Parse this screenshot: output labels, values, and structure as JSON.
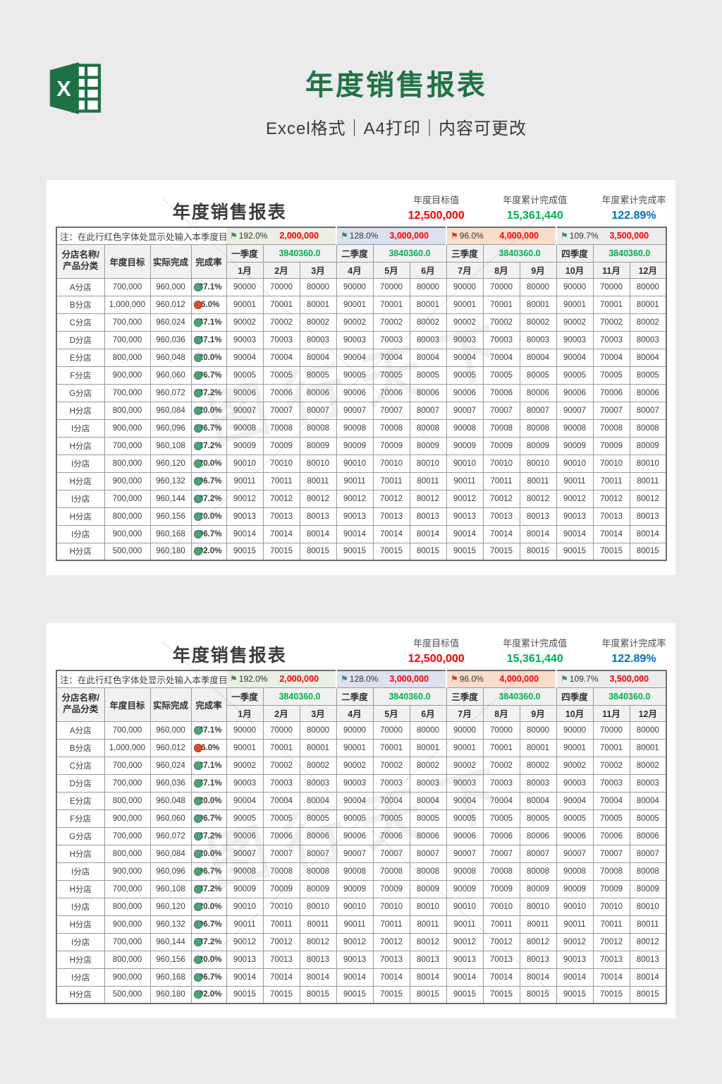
{
  "page_header": {
    "title": "年度销售报表",
    "subtitle": "Excel格式｜A4打印｜内容可更改"
  },
  "colors": {
    "brand_green": "#217346",
    "value_red": "#fe0000",
    "value_green": "#00b050",
    "value_blue": "#0070c0",
    "quarter_value_green": "#00b050",
    "dot_green": "#4ea375",
    "dot_red": "#d6502f"
  },
  "watermark": {
    "text": "图行天下"
  },
  "report": {
    "instances": 2,
    "title": "年度销售报表",
    "summary": [
      {
        "label": "年度目标值",
        "value": "12,500,000",
        "color": "#fe0000"
      },
      {
        "label": "年度累计完成值",
        "value": "15,361,440",
        "color": "#00b050"
      },
      {
        "label": "年度累计完成率",
        "value": "122.89%",
        "color": "#0070c0"
      }
    ],
    "note_label": "注：在此行红色字体处显示处输入本季度目标值",
    "quarter_targets": [
      {
        "percent": "192.0%",
        "target": "2,000,000",
        "flag_color": "#3d8b5f",
        "bg": "#e9efe2"
      },
      {
        "percent": "128.0%",
        "target": "3,000,000",
        "flag_color": "#3d8b5f",
        "bg": "#dce1f0"
      },
      {
        "percent": "96.0%",
        "target": "4,000,000",
        "flag_color": "#c2402a",
        "bg": "#f9ddcb"
      },
      {
        "percent": "109.7%",
        "target": "3,500,000",
        "flag_color": "#3d8b5f",
        "bg": "#ececec"
      }
    ],
    "columns": {
      "corner_line1": "分店名称/",
      "corner_line2": "产品分类",
      "annual_target": "年度目标",
      "actual": "实际完成",
      "rate": "完成率"
    },
    "quarters": [
      {
        "label": "一季度",
        "value": "3840360.0"
      },
      {
        "label": "二季度",
        "value": "3840360.0"
      },
      {
        "label": "三季度",
        "value": "3840360.0"
      },
      {
        "label": "四季度",
        "value": "3840360.0"
      }
    ],
    "months": [
      "1月",
      "2月",
      "3月",
      "4月",
      "5月",
      "6月",
      "7月",
      "8月",
      "9月",
      "10月",
      "11月",
      "12月"
    ],
    "rows": [
      {
        "name": "A分店",
        "target": "700,000",
        "actual": "960,000",
        "rate": "137.1%",
        "dot": "green",
        "months": [
          90000,
          70000,
          80000,
          90000,
          70000,
          80000,
          90000,
          70000,
          80000,
          90000,
          70000,
          80000
        ]
      },
      {
        "name": "B分店",
        "target": "1,000,000",
        "actual": "960,012",
        "rate": "96.0%",
        "dot": "red",
        "months": [
          90001,
          70001,
          80001,
          90001,
          70001,
          80001,
          90001,
          70001,
          80001,
          90001,
          70001,
          80001
        ]
      },
      {
        "name": "C分店",
        "target": "700,000",
        "actual": "960,024",
        "rate": "137.1%",
        "dot": "green",
        "months": [
          90002,
          70002,
          80002,
          90002,
          70002,
          80002,
          90002,
          70002,
          80002,
          90002,
          70002,
          80002
        ]
      },
      {
        "name": "D分店",
        "target": "700,000",
        "actual": "960,036",
        "rate": "137.1%",
        "dot": "green",
        "months": [
          90003,
          70003,
          80003,
          90003,
          70003,
          80003,
          90003,
          70003,
          80003,
          90003,
          70003,
          80003
        ]
      },
      {
        "name": "E分店",
        "target": "800,000",
        "actual": "960,048",
        "rate": "120.0%",
        "dot": "green",
        "months": [
          90004,
          70004,
          80004,
          90004,
          70004,
          80004,
          90004,
          70004,
          80004,
          90004,
          70004,
          80004
        ]
      },
      {
        "name": "F分店",
        "target": "900,000",
        "actual": "960,060",
        "rate": "106.7%",
        "dot": "green",
        "months": [
          90005,
          70005,
          80005,
          90005,
          70005,
          80005,
          90005,
          70005,
          80005,
          90005,
          70005,
          80005
        ]
      },
      {
        "name": "G分店",
        "target": "700,000",
        "actual": "960,072",
        "rate": "137.2%",
        "dot": "green",
        "months": [
          90006,
          70006,
          80006,
          90006,
          70006,
          80006,
          90006,
          70006,
          80006,
          90006,
          70006,
          80006
        ]
      },
      {
        "name": "H分店",
        "target": "800,000",
        "actual": "960,084",
        "rate": "120.0%",
        "dot": "green",
        "months": [
          90007,
          70007,
          80007,
          90007,
          70007,
          80007,
          90007,
          70007,
          80007,
          90007,
          70007,
          80007
        ]
      },
      {
        "name": "I分店",
        "target": "900,000",
        "actual": "960,096",
        "rate": "106.7%",
        "dot": "green",
        "months": [
          90008,
          70008,
          80008,
          90008,
          70008,
          80008,
          90008,
          70008,
          80008,
          90008,
          70008,
          80008
        ]
      },
      {
        "name": "H分店",
        "target": "700,000",
        "actual": "960,108",
        "rate": "137.2%",
        "dot": "green",
        "months": [
          90009,
          70009,
          80009,
          90009,
          70009,
          80009,
          90009,
          70009,
          80009,
          90009,
          70009,
          80009
        ]
      },
      {
        "name": "I分店",
        "target": "800,000",
        "actual": "960,120",
        "rate": "120.0%",
        "dot": "green",
        "months": [
          90010,
          70010,
          80010,
          90010,
          70010,
          80010,
          90010,
          70010,
          80010,
          90010,
          70010,
          80010
        ]
      },
      {
        "name": "H分店",
        "target": "900,000",
        "actual": "960,132",
        "rate": "106.7%",
        "dot": "green",
        "months": [
          90011,
          70011,
          80011,
          90011,
          70011,
          80011,
          90011,
          70011,
          80011,
          90011,
          70011,
          80011
        ]
      },
      {
        "name": "I分店",
        "target": "700,000",
        "actual": "960,144",
        "rate": "137.2%",
        "dot": "green",
        "months": [
          90012,
          70012,
          80012,
          90012,
          70012,
          80012,
          90012,
          70012,
          80012,
          90012,
          70012,
          80012
        ]
      },
      {
        "name": "H分店",
        "target": "800,000",
        "actual": "960,156",
        "rate": "120.0%",
        "dot": "green",
        "months": [
          90013,
          70013,
          80013,
          90013,
          70013,
          80013,
          90013,
          70013,
          80013,
          90013,
          70013,
          80013
        ]
      },
      {
        "name": "I分店",
        "target": "900,000",
        "actual": "960,168",
        "rate": "106.7%",
        "dot": "green",
        "months": [
          90014,
          70014,
          80014,
          90014,
          70014,
          80014,
          90014,
          70014,
          80014,
          90014,
          70014,
          80014
        ]
      },
      {
        "name": "H分店",
        "target": "500,000",
        "actual": "960,180",
        "rate": "192.0%",
        "dot": "green",
        "months": [
          90015,
          70015,
          80015,
          90015,
          70015,
          80015,
          90015,
          70015,
          80015,
          90015,
          70015,
          80015
        ]
      }
    ]
  }
}
